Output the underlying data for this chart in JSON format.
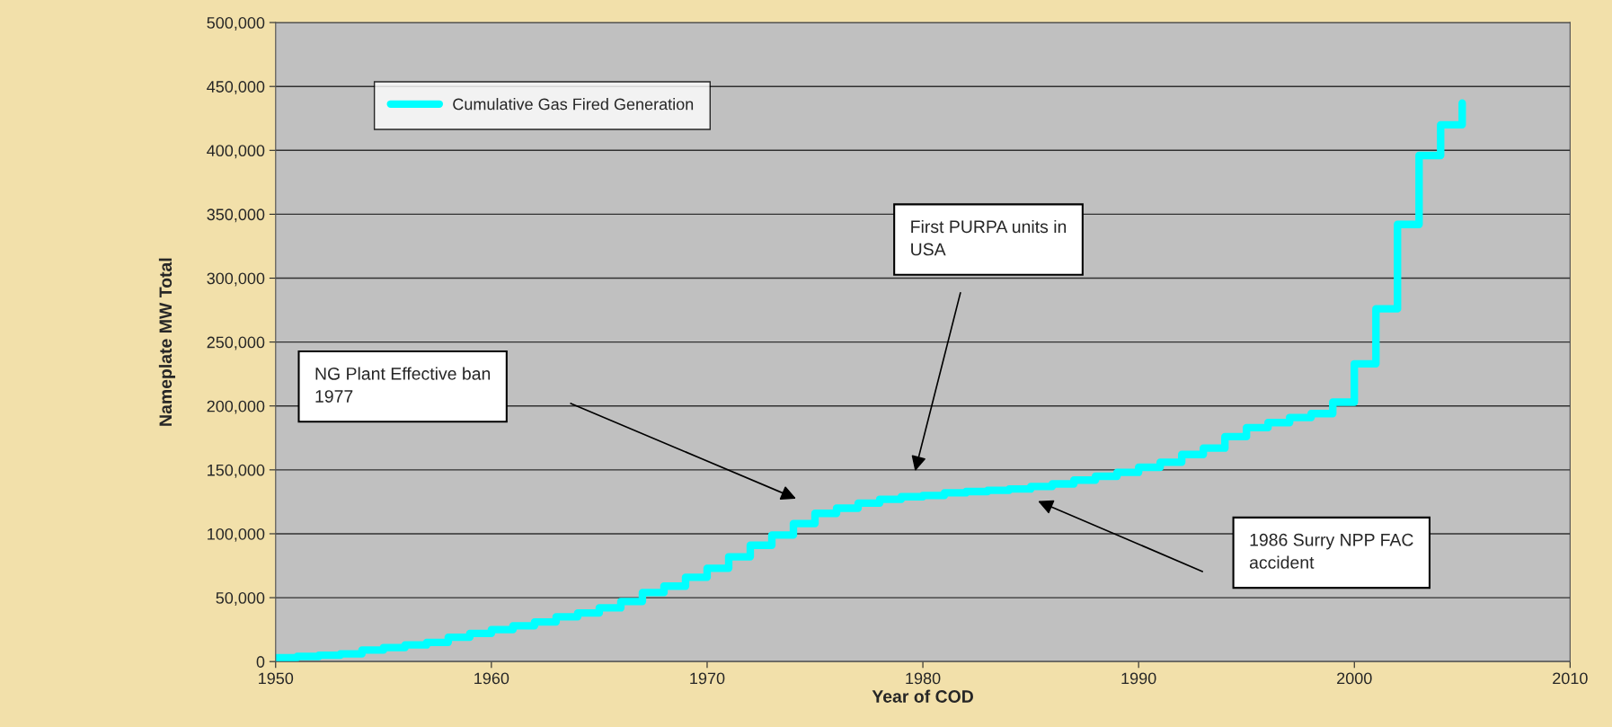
{
  "chart_data": {
    "type": "step",
    "xlabel": "Year of COD",
    "ylabel": "Nameplate MW Total",
    "x": [
      1950,
      1951,
      1952,
      1953,
      1954,
      1955,
      1956,
      1957,
      1958,
      1959,
      1960,
      1961,
      1962,
      1963,
      1964,
      1965,
      1966,
      1967,
      1968,
      1969,
      1970,
      1971,
      1972,
      1973,
      1974,
      1975,
      1976,
      1977,
      1978,
      1979,
      1980,
      1981,
      1982,
      1983,
      1984,
      1985,
      1986,
      1987,
      1988,
      1989,
      1990,
      1991,
      1992,
      1993,
      1994,
      1995,
      1996,
      1997,
      1998,
      1999,
      2000,
      2001,
      2002,
      2003,
      2004,
      2005
    ],
    "series": [
      {
        "name": "Cumulative Gas Fired Generation",
        "color": "#00ffff",
        "values": [
          3000,
          4000,
          5000,
          6000,
          9000,
          11000,
          13000,
          15000,
          19000,
          22000,
          25000,
          28000,
          31000,
          35000,
          38000,
          42000,
          47000,
          54000,
          59000,
          66000,
          73000,
          82000,
          91000,
          99000,
          108000,
          116000,
          120000,
          124000,
          127000,
          129000,
          130000,
          132000,
          133000,
          134000,
          135000,
          137000,
          139000,
          142000,
          145000,
          148000,
          152000,
          156000,
          162000,
          167000,
          176000,
          183000,
          187000,
          191000,
          194000,
          203000,
          233000,
          276000,
          342000,
          396000,
          420000,
          437000
        ]
      }
    ],
    "xlim": [
      1950,
      2010
    ],
    "xticks": [
      1950,
      1960,
      1970,
      1980,
      1990,
      2000,
      2010
    ],
    "ylim": [
      0,
      500000
    ],
    "yticks": [
      {
        "value": 0,
        "label": "0"
      },
      {
        "value": 50000,
        "label": "50,000"
      },
      {
        "value": 100000,
        "label": "100,000"
      },
      {
        "value": 150000,
        "label": "150,000"
      },
      {
        "value": 200000,
        "label": "200,000"
      },
      {
        "value": 250000,
        "label": "250,000"
      },
      {
        "value": 300000,
        "label": "300,000"
      },
      {
        "value": 350000,
        "label": "350,000"
      },
      {
        "value": 400000,
        "label": "400,000"
      },
      {
        "value": 450000,
        "label": "450,000"
      },
      {
        "value": 500000,
        "label": "500,000"
      }
    ],
    "grid": "y",
    "legend": "top left",
    "marker": "none",
    "line_style": "solid",
    "annotations": [
      "NG Plant Effective ban\n1977",
      "First PURPA units in\nUSA",
      "1986 Surry NPP FAC\naccident"
    ]
  }
}
